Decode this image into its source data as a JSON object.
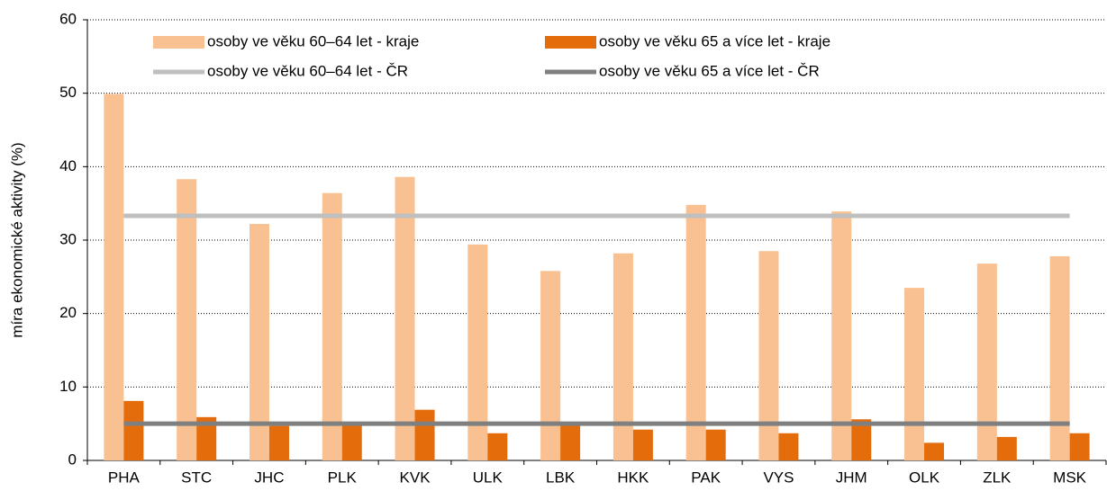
{
  "chart_data": {
    "type": "bar",
    "y_label": "míra ekonomické aktivity (%)",
    "categories": [
      "PHA",
      "STC",
      "JHC",
      "PLK",
      "KVK",
      "ULK",
      "LBK",
      "HKK",
      "PAK",
      "VYS",
      "JHM",
      "OLK",
      "ZLK",
      "MSK"
    ],
    "series": [
      {
        "name": "osoby ve věku 60–64 let - kraje",
        "type": "bar",
        "color": "#f9c191",
        "values": [
          49.9,
          38.3,
          32.2,
          36.4,
          38.6,
          29.4,
          25.8,
          28.2,
          34.8,
          28.5,
          33.9,
          23.5,
          26.8,
          27.8
        ]
      },
      {
        "name": "osoby ve věku 65 a více let - kraje",
        "type": "bar",
        "color": "#e46c0a",
        "values": [
          8.1,
          5.9,
          4.7,
          4.9,
          6.9,
          3.7,
          4.9,
          4.2,
          4.2,
          3.7,
          5.6,
          2.4,
          3.2,
          3.7
        ]
      },
      {
        "name": "osoby ve věku 60–64 let - ČR",
        "type": "line",
        "color": "#bfbfbf",
        "values": [
          33.3,
          33.3,
          33.3,
          33.3,
          33.3,
          33.3,
          33.3,
          33.3,
          33.3,
          33.3,
          33.3,
          33.3,
          33.3,
          33.3
        ]
      },
      {
        "name": "osoby ve věku 65 a více let - ČR",
        "type": "line",
        "color": "#7f7f7f",
        "values": [
          5.0,
          5.0,
          5.0,
          5.0,
          5.0,
          5.0,
          5.0,
          5.0,
          5.0,
          5.0,
          5.0,
          5.0,
          5.0,
          5.0
        ]
      }
    ],
    "ylim": [
      0,
      60
    ],
    "yticks": [
      0,
      10,
      20,
      30,
      40,
      50,
      60
    ],
    "grid": true,
    "legend": "top"
  }
}
